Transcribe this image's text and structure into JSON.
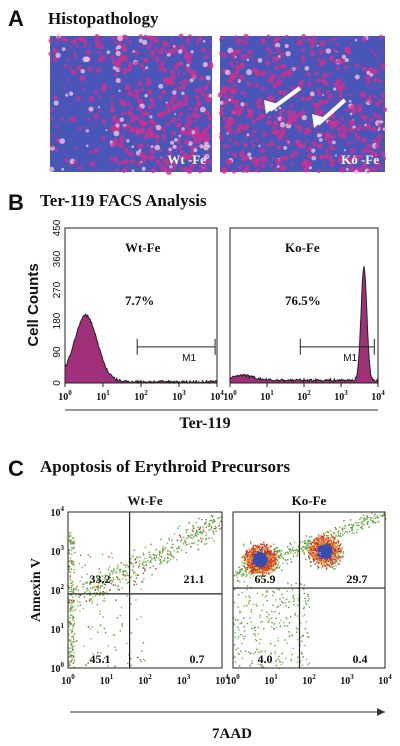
{
  "panels": [
    {
      "label": "A",
      "title": "Histopathology",
      "images": [
        {
          "caption": "Wt -Fe"
        },
        {
          "caption": "Ko -Fe"
        }
      ]
    },
    {
      "label": "B",
      "title": "Ter-119 FACS Analysis",
      "y_axis_label": "Cell Counts",
      "x_axis_label": "Ter-119",
      "y_ticks": [
        "0",
        "90",
        "180",
        "270",
        "360",
        "450"
      ],
      "x_ticks": [
        {
          "base": "10",
          "exp": "0"
        },
        {
          "base": "10",
          "exp": "1"
        },
        {
          "base": "10",
          "exp": "2"
        },
        {
          "base": "10",
          "exp": "3"
        },
        {
          "base": "10",
          "exp": "4"
        }
      ],
      "plots": [
        {
          "name": "Wt-Fe",
          "percent": "7.7%",
          "gate": "M1"
        },
        {
          "name": "Ko-Fe",
          "percent": "76.5%",
          "gate": "M1"
        }
      ]
    },
    {
      "label": "C",
      "title": "Apoptosis of Erythroid Precursors",
      "y_axis_label": "Annexin V",
      "x_axis_label": "7AAD",
      "ticks": [
        {
          "base": "10",
          "exp": "0"
        },
        {
          "base": "10",
          "exp": "1"
        },
        {
          "base": "10",
          "exp": "2"
        },
        {
          "base": "10",
          "exp": "3"
        },
        {
          "base": "10",
          "exp": "4"
        }
      ],
      "plots": [
        {
          "name": "Wt-Fe",
          "quadrants": [
            "33.2",
            "21.1",
            "45.1",
            "0.7"
          ]
        },
        {
          "name": "Ko-Fe",
          "quadrants": [
            "65.9",
            "29.7",
            "4.0",
            "0.4"
          ]
        }
      ]
    }
  ]
}
